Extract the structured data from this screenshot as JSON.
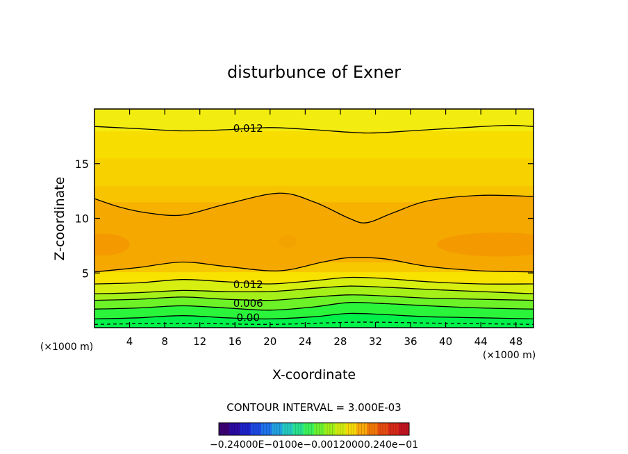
{
  "chart_data": {
    "type": "contour",
    "title": "disturbunce of Exner",
    "xlabel": "X-coordinate",
    "ylabel": "Z-coordinate",
    "x_unit": "(×1000 m)",
    "y_unit": "(×1000 m)",
    "xlim": [
      0,
      50
    ],
    "ylim": [
      0,
      20
    ],
    "x_ticks": [
      4,
      8,
      12,
      16,
      20,
      24,
      28,
      32,
      36,
      40,
      44,
      48
    ],
    "y_ticks": [
      5,
      10,
      15
    ],
    "contour_interval_text": "CONTOUR INTERVAL = 3.000E-03",
    "contour_interval": 0.003,
    "contour_labels": [
      {
        "text": "0.012",
        "x": 17.5,
        "z": 18.3
      },
      {
        "text": "0.012",
        "x": 17.5,
        "z": 4.0
      },
      {
        "text": "0.006",
        "x": 17.5,
        "z": 2.3
      },
      {
        "text": "0.00",
        "x": 17.5,
        "z": 1.0
      }
    ],
    "contour_lines": [
      {
        "level": 0.0,
        "dashed": false,
        "z": [
          [
            0,
            0.8
          ],
          [
            5,
            0.9
          ],
          [
            10,
            1.1
          ],
          [
            15,
            0.9
          ],
          [
            20,
            0.8
          ],
          [
            25,
            1.0
          ],
          [
            29,
            1.3
          ],
          [
            33,
            1.2
          ],
          [
            38,
            1.0
          ],
          [
            44,
            0.9
          ],
          [
            50,
            0.8
          ]
        ]
      },
      {
        "level": 0.003,
        "dashed": false,
        "z": [
          [
            0,
            1.7
          ],
          [
            5,
            1.8
          ],
          [
            10,
            2.0
          ],
          [
            15,
            1.8
          ],
          [
            20,
            1.6
          ],
          [
            25,
            1.9
          ],
          [
            29,
            2.3
          ],
          [
            33,
            2.2
          ],
          [
            38,
            2.0
          ],
          [
            44,
            1.8
          ],
          [
            50,
            1.7
          ]
        ]
      },
      {
        "level": 0.006,
        "dashed": false,
        "z": [
          [
            0,
            2.5
          ],
          [
            5,
            2.6
          ],
          [
            10,
            2.8
          ],
          [
            15,
            2.6
          ],
          [
            20,
            2.5
          ],
          [
            25,
            2.8
          ],
          [
            29,
            3.0
          ],
          [
            33,
            2.9
          ],
          [
            38,
            2.7
          ],
          [
            44,
            2.6
          ],
          [
            50,
            2.5
          ]
        ]
      },
      {
        "level": 0.009,
        "dashed": false,
        "z": [
          [
            0,
            3.1
          ],
          [
            5,
            3.2
          ],
          [
            10,
            3.4
          ],
          [
            15,
            3.3
          ],
          [
            20,
            3.3
          ],
          [
            25,
            3.6
          ],
          [
            29,
            3.8
          ],
          [
            33,
            3.7
          ],
          [
            38,
            3.5
          ],
          [
            44,
            3.3
          ],
          [
            50,
            3.1
          ]
        ]
      },
      {
        "level": 0.012,
        "dashed": false,
        "z": [
          [
            0,
            4.0
          ],
          [
            5,
            4.1
          ],
          [
            10,
            4.4
          ],
          [
            15,
            4.2
          ],
          [
            20,
            4.0
          ],
          [
            25,
            4.3
          ],
          [
            29,
            4.6
          ],
          [
            33,
            4.5
          ],
          [
            38,
            4.2
          ],
          [
            44,
            4.0
          ],
          [
            50,
            4.0
          ]
        ]
      },
      {
        "level": 0.015,
        "dashed": false,
        "z": [
          [
            0,
            5.1
          ],
          [
            5,
            5.5
          ],
          [
            10,
            6.0
          ],
          [
            15,
            5.6
          ],
          [
            21,
            5.2
          ],
          [
            26,
            6.0
          ],
          [
            29,
            6.4
          ],
          [
            33,
            6.3
          ],
          [
            38,
            5.6
          ],
          [
            44,
            5.2
          ],
          [
            50,
            5.1
          ]
        ]
      },
      {
        "level": 0.015,
        "dashed": false,
        "z": [
          [
            0,
            11.8
          ],
          [
            3,
            11.0
          ],
          [
            6,
            10.5
          ],
          [
            10,
            10.3
          ],
          [
            15,
            11.3
          ],
          [
            21,
            12.3
          ],
          [
            25,
            11.5
          ],
          [
            29,
            10.0
          ],
          [
            31,
            9.6
          ],
          [
            34,
            10.5
          ],
          [
            38,
            11.6
          ],
          [
            44,
            12.1
          ],
          [
            50,
            12.0
          ]
        ]
      },
      {
        "level": 0.012,
        "dashed": false,
        "z": [
          [
            0,
            18.4
          ],
          [
            5,
            18.2
          ],
          [
            10,
            18.0
          ],
          [
            15,
            18.1
          ],
          [
            20,
            18.3
          ],
          [
            25,
            18.1
          ],
          [
            31,
            17.8
          ],
          [
            36,
            18.0
          ],
          [
            42,
            18.3
          ],
          [
            47,
            18.5
          ],
          [
            50,
            18.4
          ]
        ]
      },
      {
        "level": -0.003,
        "dashed": true,
        "z": [
          [
            0,
            0.3
          ],
          [
            10,
            0.4
          ],
          [
            20,
            0.3
          ],
          [
            30,
            0.5
          ],
          [
            40,
            0.4
          ],
          [
            50,
            0.3
          ]
        ]
      }
    ],
    "fill_bands": [
      {
        "color": "#00f24a",
        "z_bottom": 0.0,
        "z_top": 0.8
      },
      {
        "color": "#2af53a",
        "z_bottom": 0.8,
        "z_top": 1.3
      },
      {
        "color": "#55f52a",
        "z_bottom": 1.3,
        "z_top": 1.8
      },
      {
        "color": "#7ff21f",
        "z_bottom": 1.8,
        "z_top": 2.3
      },
      {
        "color": "#a5f018",
        "z_bottom": 2.3,
        "z_top": 2.8
      },
      {
        "color": "#c8ef12",
        "z_bottom": 2.8,
        "z_top": 3.3
      },
      {
        "color": "#e6ec0c",
        "z_bottom": 3.3,
        "z_top": 4.0
      },
      {
        "color": "#f8e200",
        "z_bottom": 4.0,
        "z_top": 5.1
      },
      {
        "color": "#f7c800",
        "z_bottom": 5.1,
        "z_top": 6.0
      },
      {
        "color": "#f7b200",
        "z_bottom": 6.0,
        "z_top": 11.5
      },
      {
        "color": "#f8c400",
        "z_bottom": 11.5,
        "z_top": 13.0
      },
      {
        "color": "#f8d200",
        "z_bottom": 13.0,
        "z_top": 15.5
      },
      {
        "color": "#f8dd00",
        "z_bottom": 15.5,
        "z_top": 18.0
      },
      {
        "color": "#f3ec10",
        "z_bottom": 18.0,
        "z_top": 20.0
      }
    ],
    "core_regions": [
      {
        "color": "#f49a00",
        "cx": 1.0,
        "cz": 7.6,
        "rx": 3.0,
        "rz": 1.0
      },
      {
        "color": "#f49a00",
        "cx": 46.0,
        "cz": 7.6,
        "rx": 7.0,
        "rz": 1.1
      },
      {
        "color": "#f4a200",
        "cx": 22.0,
        "cz": 7.9,
        "rx": 1.0,
        "rz": 0.6
      }
    ],
    "colorbar": {
      "labels_text": "−0.24000E−0100e−0.00120000.240e−01",
      "colors": [
        "#3b0072",
        "#2a0aa0",
        "#1d22c8",
        "#1c48e0",
        "#1f72e8",
        "#22a0e0",
        "#24c8c0",
        "#28e090",
        "#3cf05a",
        "#6cf030",
        "#a0ee18",
        "#d0ea10",
        "#f4d808",
        "#f8a808",
        "#f07808",
        "#e64c10",
        "#d62a18",
        "#c01420"
      ]
    }
  }
}
